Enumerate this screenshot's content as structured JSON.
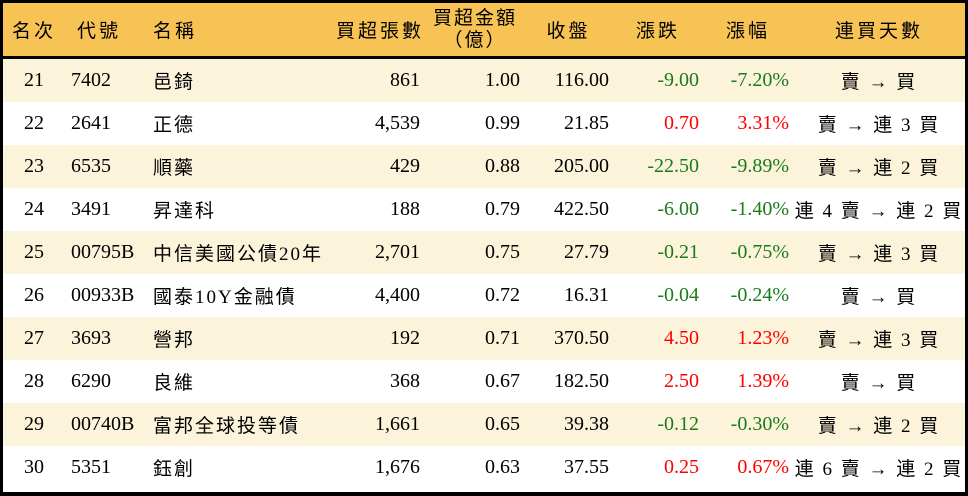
{
  "table": {
    "title_semantic": "institutional-net-buy-ranking",
    "colors": {
      "header_bg": "#F7C354",
      "row_alt_bg": "#FCF3DB",
      "row_bg": "#FFFFFF",
      "border": "#000000",
      "text": "#000000",
      "up": "#FF0000",
      "down": "#1B7B1B"
    },
    "header": {
      "rank": "名次",
      "code": "代號",
      "name": "名稱",
      "volume": "買超張數",
      "amount_line1": "買超金額",
      "amount_line2": "（億）",
      "close": "收盤",
      "change": "漲跌",
      "change_pct": "漲幅",
      "streak": "連買天數"
    },
    "rows": [
      {
        "rank": "21",
        "code": "7402",
        "name": "邑錡",
        "volume": "861",
        "amount": "1.00",
        "close": "116.00",
        "change": "-9.00",
        "change_pct": "-7.20%",
        "dir": "down",
        "streak": "賣 → 買"
      },
      {
        "rank": "22",
        "code": "2641",
        "name": "正德",
        "volume": "4,539",
        "amount": "0.99",
        "close": "21.85",
        "change": "0.70",
        "change_pct": "3.31%",
        "dir": "up",
        "streak": "賣 → 連 3 買"
      },
      {
        "rank": "23",
        "code": "6535",
        "name": "順藥",
        "volume": "429",
        "amount": "0.88",
        "close": "205.00",
        "change": "-22.50",
        "change_pct": "-9.89%",
        "dir": "down",
        "streak": "賣 → 連 2 買"
      },
      {
        "rank": "24",
        "code": "3491",
        "name": "昇達科",
        "volume": "188",
        "amount": "0.79",
        "close": "422.50",
        "change": "-6.00",
        "change_pct": "-1.40%",
        "dir": "down",
        "streak": "連 4 賣 → 連 2 買"
      },
      {
        "rank": "25",
        "code": "00795B",
        "name": "中信美國公債20年",
        "volume": "2,701",
        "amount": "0.75",
        "close": "27.79",
        "change": "-0.21",
        "change_pct": "-0.75%",
        "dir": "down",
        "streak": "賣 → 連 3 買"
      },
      {
        "rank": "26",
        "code": "00933B",
        "name": "國泰10Y金融債",
        "volume": "4,400",
        "amount": "0.72",
        "close": "16.31",
        "change": "-0.04",
        "change_pct": "-0.24%",
        "dir": "down",
        "streak": "賣 → 買"
      },
      {
        "rank": "27",
        "code": "3693",
        "name": "營邦",
        "volume": "192",
        "amount": "0.71",
        "close": "370.50",
        "change": "4.50",
        "change_pct": "1.23%",
        "dir": "up",
        "streak": "賣 → 連 3 買"
      },
      {
        "rank": "28",
        "code": "6290",
        "name": "良維",
        "volume": "368",
        "amount": "0.67",
        "close": "182.50",
        "change": "2.50",
        "change_pct": "1.39%",
        "dir": "up",
        "streak": "賣 → 買"
      },
      {
        "rank": "29",
        "code": "00740B",
        "name": "富邦全球投等債",
        "volume": "1,661",
        "amount": "0.65",
        "close": "39.38",
        "change": "-0.12",
        "change_pct": "-0.30%",
        "dir": "down",
        "streak": "賣 → 連 2 買"
      },
      {
        "rank": "30",
        "code": "5351",
        "name": "鈺創",
        "volume": "1,676",
        "amount": "0.63",
        "close": "37.55",
        "change": "0.25",
        "change_pct": "0.67%",
        "dir": "up",
        "streak": "連 6 賣 → 連 2 買"
      }
    ]
  }
}
